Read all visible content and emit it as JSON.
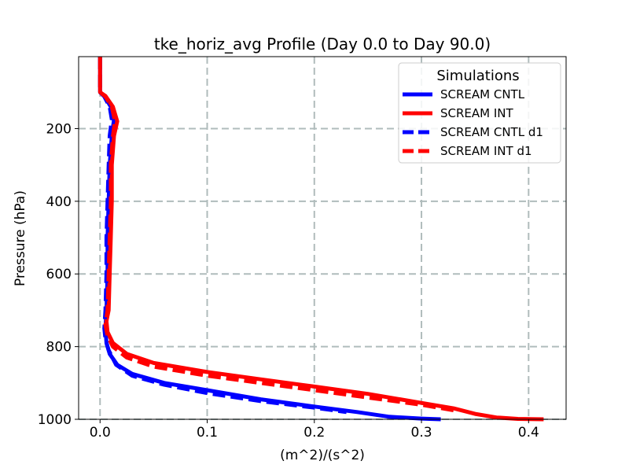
{
  "chart_data": {
    "type": "line",
    "title": "tke_horiz_avg Profile (Day 0.0 to Day 90.0)",
    "xlabel": "(m^2)/(s^2)",
    "ylabel": "Pressure (hPa)",
    "xlim": [
      -0.02,
      0.435
    ],
    "ylim": [
      1000,
      2
    ],
    "y_inverted": true,
    "grid": true,
    "xticks": [
      0.0,
      0.1,
      0.2,
      0.3,
      0.4
    ],
    "xtick_labels": [
      "0.0",
      "0.1",
      "0.2",
      "0.3",
      "0.4"
    ],
    "yticks": [
      200,
      400,
      600,
      800,
      1000
    ],
    "ytick_labels": [
      "200",
      "400",
      "600",
      "800",
      "1000"
    ],
    "legend": {
      "title": "Simulations",
      "position": "top-right"
    },
    "series": [
      {
        "name": "SCREAM CNTL",
        "color": "#0000ff",
        "style": "solid",
        "points": [
          [
            0.0,
            2
          ],
          [
            0.0,
            100
          ],
          [
            0.004,
            110
          ],
          [
            0.01,
            140
          ],
          [
            0.013,
            175
          ],
          [
            0.011,
            220
          ],
          [
            0.009,
            300
          ],
          [
            0.008,
            400
          ],
          [
            0.007,
            500
          ],
          [
            0.007,
            600
          ],
          [
            0.006,
            700
          ],
          [
            0.005,
            750
          ],
          [
            0.006,
            790
          ],
          [
            0.009,
            820
          ],
          [
            0.016,
            850
          ],
          [
            0.03,
            875
          ],
          [
            0.06,
            900
          ],
          [
            0.1,
            920
          ],
          [
            0.15,
            945
          ],
          [
            0.2,
            965
          ],
          [
            0.24,
            980
          ],
          [
            0.27,
            993
          ],
          [
            0.3,
            998
          ],
          [
            0.318,
            1000
          ]
        ]
      },
      {
        "name": "SCREAM INT",
        "color": "#ff0000",
        "style": "solid",
        "points": [
          [
            0.0,
            2
          ],
          [
            0.0,
            100
          ],
          [
            0.005,
            110
          ],
          [
            0.012,
            140
          ],
          [
            0.016,
            180
          ],
          [
            0.013,
            220
          ],
          [
            0.011,
            300
          ],
          [
            0.011,
            400
          ],
          [
            0.01,
            500
          ],
          [
            0.009,
            600
          ],
          [
            0.008,
            700
          ],
          [
            0.006,
            730
          ],
          [
            0.007,
            760
          ],
          [
            0.012,
            790
          ],
          [
            0.025,
            820
          ],
          [
            0.05,
            845
          ],
          [
            0.1,
            870
          ],
          [
            0.15,
            890
          ],
          [
            0.2,
            910
          ],
          [
            0.25,
            930
          ],
          [
            0.3,
            955
          ],
          [
            0.33,
            970
          ],
          [
            0.35,
            985
          ],
          [
            0.37,
            995
          ],
          [
            0.39,
            999
          ],
          [
            0.414,
            1000
          ]
        ]
      },
      {
        "name": "SCREAM CNTL d1",
        "color": "#0000ff",
        "style": "dashed",
        "points": [
          [
            0.0,
            2
          ],
          [
            0.0,
            100
          ],
          [
            0.004,
            112
          ],
          [
            0.009,
            140
          ],
          [
            0.011,
            175
          ],
          [
            0.009,
            220
          ],
          [
            0.008,
            300
          ],
          [
            0.007,
            400
          ],
          [
            0.006,
            500
          ],
          [
            0.006,
            600
          ],
          [
            0.005,
            700
          ],
          [
            0.004,
            750
          ],
          [
            0.005,
            780
          ],
          [
            0.008,
            810
          ],
          [
            0.015,
            850
          ],
          [
            0.03,
            880
          ],
          [
            0.06,
            905
          ],
          [
            0.1,
            928
          ],
          [
            0.15,
            950
          ],
          [
            0.2,
            968
          ],
          [
            0.23,
            980
          ]
        ]
      },
      {
        "name": "SCREAM INT d1",
        "color": "#ff0000",
        "style": "dashed",
        "points": [
          [
            0.0,
            2
          ],
          [
            0.0,
            100
          ],
          [
            0.005,
            112
          ],
          [
            0.011,
            140
          ],
          [
            0.014,
            180
          ],
          [
            0.012,
            220
          ],
          [
            0.01,
            300
          ],
          [
            0.01,
            400
          ],
          [
            0.009,
            500
          ],
          [
            0.008,
            600
          ],
          [
            0.007,
            700
          ],
          [
            0.005,
            740
          ],
          [
            0.007,
            770
          ],
          [
            0.012,
            800
          ],
          [
            0.025,
            830
          ],
          [
            0.05,
            855
          ],
          [
            0.1,
            880
          ],
          [
            0.15,
            900
          ],
          [
            0.2,
            920
          ],
          [
            0.25,
            940
          ],
          [
            0.3,
            960
          ],
          [
            0.33,
            975
          ]
        ]
      }
    ]
  }
}
